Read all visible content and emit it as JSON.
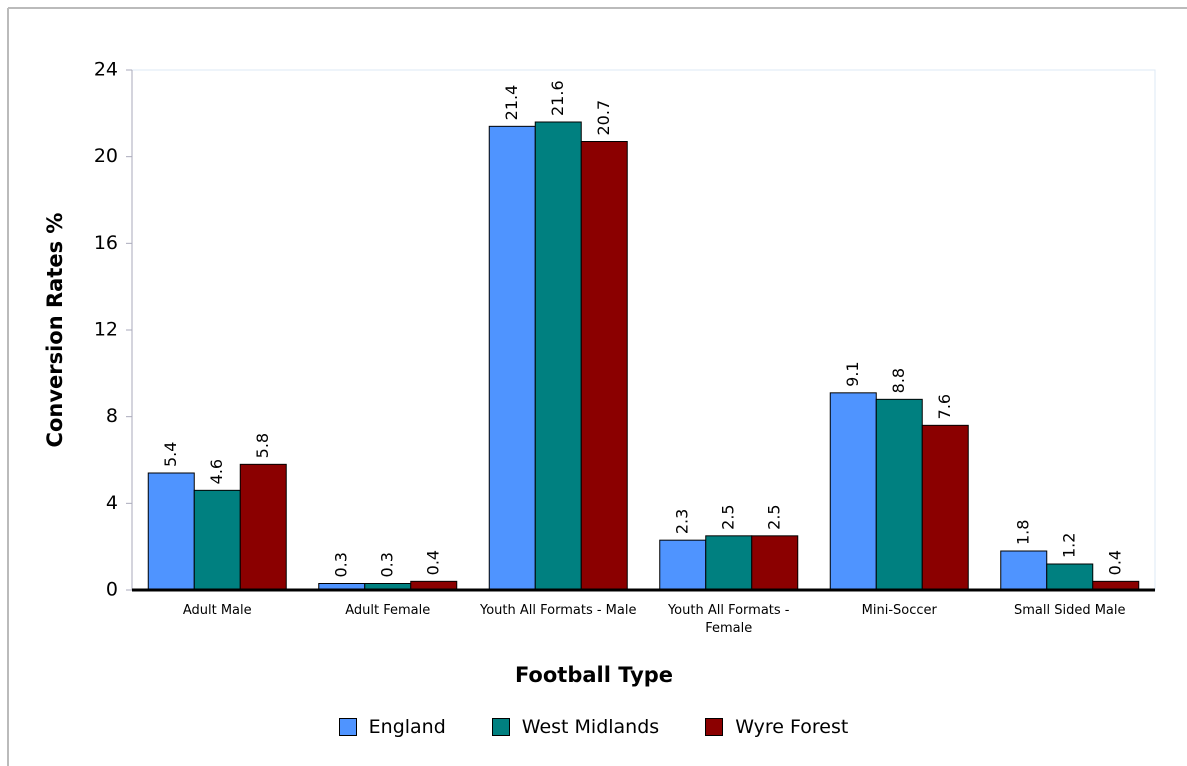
{
  "chart_data": {
    "type": "bar",
    "x_label": "Football Type",
    "y_label": "Conversion Rates %",
    "categories": [
      "Adult Male",
      "Adult Female",
      "Youth All Formats - Male",
      "Youth All Formats - Female",
      "Mini-Soccer",
      "Small Sided Male"
    ],
    "series": [
      {
        "name": "England",
        "color": "#4f94ff",
        "values": [
          5.4,
          0.3,
          21.4,
          2.3,
          9.1,
          1.8
        ]
      },
      {
        "name": "West Midlands",
        "color": "#008080",
        "values": [
          4.6,
          0.3,
          21.6,
          2.5,
          8.8,
          1.2
        ]
      },
      {
        "name": "Wyre Forest",
        "color": "#8b0000",
        "values": [
          5.8,
          0.4,
          20.7,
          2.5,
          7.6,
          0.4
        ]
      }
    ],
    "ylim": [
      0,
      24
    ],
    "yticks": [
      0,
      4,
      8,
      12,
      16,
      20,
      24
    ],
    "grid": false
  }
}
